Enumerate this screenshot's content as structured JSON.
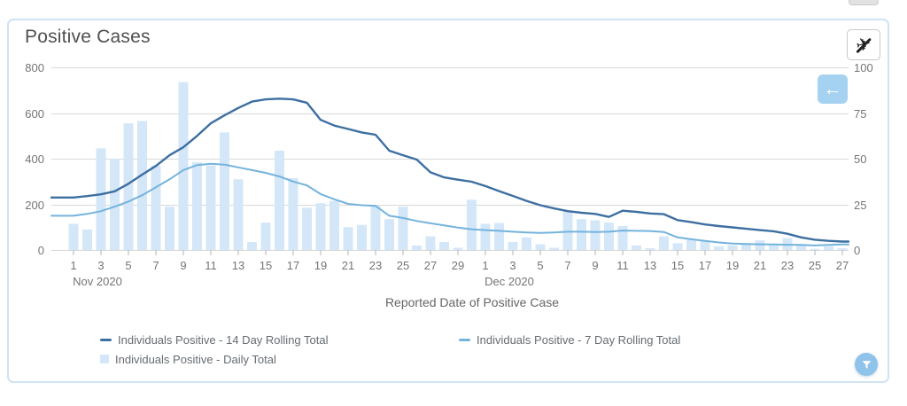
{
  "card": {
    "title": "Positive Cases"
  },
  "buttons": {
    "plane_label": "✈",
    "back_arrow_label": "←"
  },
  "legend": {
    "items": [
      {
        "label": "Individuals Positive - 14 Day Rolling Total",
        "series_index": 0,
        "swatch": "dash"
      },
      {
        "label": "Individuals Positive - 7 Day Rolling Total",
        "series_index": 1,
        "swatch": "dash"
      },
      {
        "label": "Individuals Positive - Daily Total",
        "series_index": 2,
        "swatch": "square"
      }
    ]
  },
  "chart_data": {
    "type": "combo",
    "title": "Positive Cases",
    "xlabel": "Reported Date of Positive Case",
    "left_axis": {
      "ticks": [
        0,
        200,
        400,
        600,
        800
      ],
      "max": 800
    },
    "right_axis": {
      "ticks": [
        0,
        25,
        50,
        75,
        100
      ],
      "max": 100
    },
    "x_axis": {
      "months": [
        {
          "label": "Nov 2020",
          "days": 30
        },
        {
          "label": "Dec 2020",
          "days": 27
        }
      ],
      "tick_step": 2
    },
    "grid": true,
    "legend_position": "bottom",
    "series": [
      {
        "name": "Individuals Positive - 14 Day Rolling Total",
        "type": "line",
        "color": "#3d6fa1",
        "values": [
          230,
          236,
          244,
          257,
          290,
          330,
          368,
          415,
          450,
          500,
          555,
          590,
          622,
          650,
          660,
          663,
          660,
          645,
          570,
          545,
          530,
          515,
          505,
          435,
          415,
          396,
          340,
          318,
          308,
          299,
          280,
          258,
          237,
          215,
          196,
          182,
          170,
          163,
          158,
          145,
          172,
          167,
          160,
          157,
          131,
          122,
          112,
          105,
          99,
          93,
          87,
          82,
          71,
          55,
          45,
          40,
          37
        ]
      },
      {
        "name": "Individuals Positive - 7 Day Rolling Total",
        "type": "line",
        "color": "#74b3dc",
        "values": [
          150,
          158,
          170,
          190,
          212,
          240,
          275,
          310,
          350,
          372,
          378,
          374,
          362,
          350,
          338,
          322,
          300,
          283,
          245,
          222,
          202,
          196,
          193,
          150,
          140,
          127,
          117,
          108,
          98,
          91,
          87,
          84,
          80,
          77,
          75,
          77,
          80,
          80,
          79,
          80,
          85,
          84,
          83,
          79,
          55,
          47,
          40,
          33,
          28,
          26,
          25,
          24,
          23,
          22,
          20,
          22,
          24
        ]
      },
      {
        "name": "Individuals Positive - Daily Total",
        "type": "bar",
        "color": "#d4e7f9",
        "values": [
          115,
          90,
          445,
          400,
          555,
          565,
          370,
          190,
          735,
          385,
          370,
          515,
          310,
          35,
          120,
          435,
          315,
          185,
          205,
          215,
          100,
          110,
          195,
          135,
          190,
          20,
          60,
          35,
          10,
          220,
          115,
          118,
          35,
          55,
          25,
          10,
          170,
          135,
          130,
          120,
          105,
          20,
          8,
          60,
          30,
          45,
          40,
          15,
          20,
          30,
          42,
          20,
          52,
          22,
          5,
          16,
          8
        ]
      }
    ],
    "colors": {
      "grid": "#d8d8d8",
      "axis_text": "#757575",
      "axis_title": "#666666"
    }
  }
}
